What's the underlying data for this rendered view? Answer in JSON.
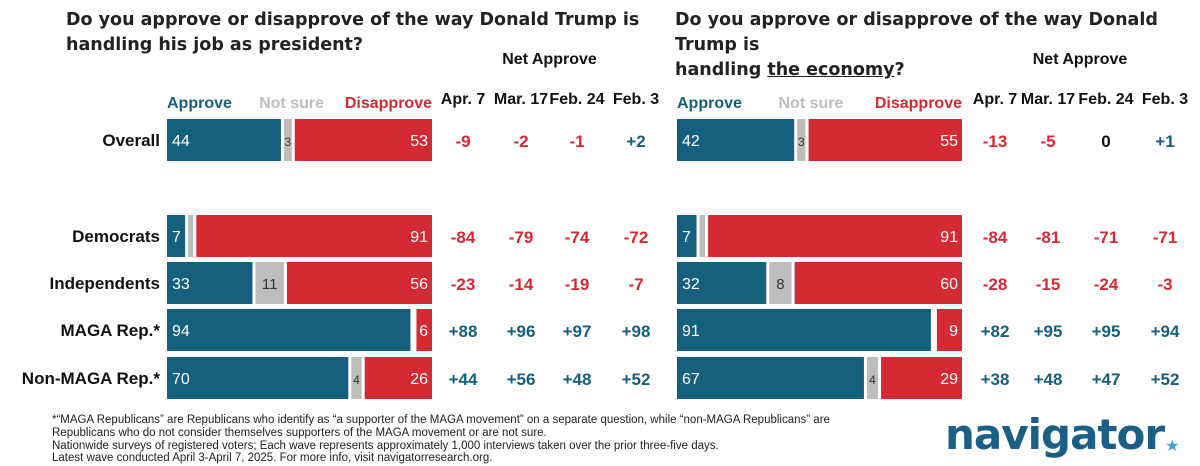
{
  "chart_data": [
    {
      "type": "bar",
      "orientation": "horizontal",
      "stacked": true,
      "title_parts": [
        "Do you approve or disapprove of the way Donald Trump is",
        "handling his job as president?"
      ],
      "categories": [
        "Overall",
        "Democrats",
        "Independents",
        "MAGA Rep.*",
        "Non-MAGA Rep.*"
      ],
      "series": [
        {
          "name": "Approve",
          "values": [
            44,
            7,
            33,
            94,
            70
          ]
        },
        {
          "name": "Not sure",
          "values": [
            3,
            2,
            11,
            0,
            4
          ]
        },
        {
          "name": "Disapprove",
          "values": [
            53,
            91,
            56,
            6,
            26
          ]
        }
      ],
      "data_labels": {
        "Approve": [
          "44",
          "7",
          "33",
          "94",
          "70"
        ],
        "Not sure": [
          "3",
          "",
          "11",
          "",
          "4"
        ],
        "Disapprove": [
          "53",
          "91",
          "56",
          "6",
          "26"
        ]
      },
      "net_approve_header": "Net Approve",
      "net_approve_columns": [
        "Apr. 7",
        "Mar. 17",
        "Feb. 24",
        "Feb. 3"
      ],
      "net_approve": [
        [
          "-9",
          "-2",
          "-1",
          "+2"
        ],
        [
          "-84",
          "-79",
          "-74",
          "-72"
        ],
        [
          "-23",
          "-14",
          "-19",
          "-7"
        ],
        [
          "+88",
          "+96",
          "+97",
          "+98"
        ],
        [
          "+44",
          "+56",
          "+48",
          "+52"
        ]
      ]
    },
    {
      "type": "bar",
      "orientation": "horizontal",
      "stacked": true,
      "title_parts": [
        "Do you approve or disapprove of the way Donald Trump is",
        "handling ",
        "the economy",
        "?"
      ],
      "categories": [
        "Overall",
        "Democrats",
        "Independents",
        "MAGA Rep.*",
        "Non-MAGA Rep.*"
      ],
      "series": [
        {
          "name": "Approve",
          "values": [
            42,
            7,
            32,
            91,
            67
          ]
        },
        {
          "name": "Not sure",
          "values": [
            3,
            2,
            8,
            0,
            4
          ]
        },
        {
          "name": "Disapprove",
          "values": [
            55,
            91,
            60,
            9,
            29
          ]
        }
      ],
      "data_labels": {
        "Approve": [
          "42",
          "7",
          "32",
          "91",
          "67"
        ],
        "Not sure": [
          "3",
          "",
          "8",
          "",
          "4"
        ],
        "Disapprove": [
          "55",
          "91",
          "60",
          "9",
          "29"
        ]
      },
      "net_approve_header": "Net Approve",
      "net_approve_columns": [
        "Apr. 7",
        "Mar. 17",
        "Feb. 24",
        "Feb. 3"
      ],
      "net_approve": [
        [
          "-13",
          "-5",
          "0",
          "+1"
        ],
        [
          "-84",
          "-81",
          "-71",
          "-71"
        ],
        [
          "-28",
          "-15",
          "-24",
          "-3"
        ],
        [
          "+82",
          "+95",
          "+95",
          "+94"
        ],
        [
          "+38",
          "+48",
          "+47",
          "+52"
        ]
      ]
    }
  ],
  "colors": {
    "approve": "#15607f",
    "not_sure": "#bdbdbd",
    "disapprove": "#d42a34",
    "neutral_text": "#111111"
  },
  "footnotes": [
    "*“MAGA Republicans” are Republicans who identify as “a supporter of the MAGA movement” on a separate question, while “non-MAGA Republicans” are",
    "Republicans who do not consider themselves supporters of the MAGA movement or are not sure.",
    "Nationwide surveys of registered voters; Each wave represents approximately 1,000 interviews taken over the prior three-five days.",
    "Latest wave conducted April 3-April 7, 2025. For more info, visit navigatorresearch.org."
  ],
  "logo_text": "navigator",
  "logo_mark": "★"
}
